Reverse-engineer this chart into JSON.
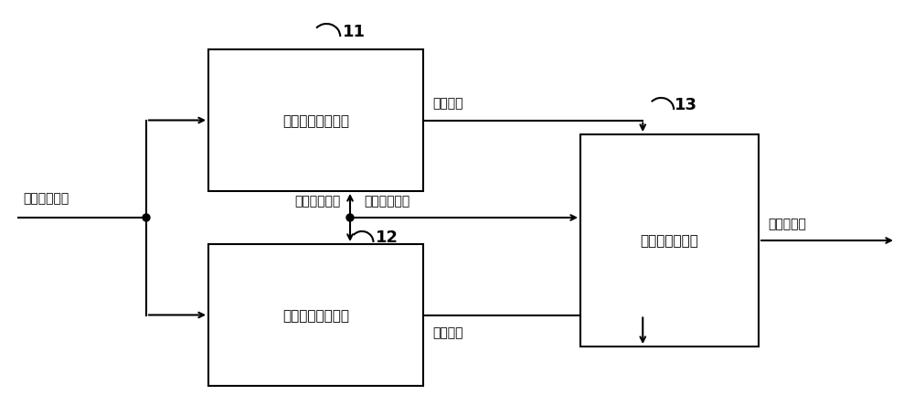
{
  "fig_width": 10.0,
  "fig_height": 4.56,
  "bg_color": "#ffffff",
  "label_11": "11",
  "label_12": "12",
  "label_13": "13",
  "box_xor_label": "异或信号生成电路",
  "box_xnor_label": "同或信号生成电路",
  "box_mux_label": "传输门选择电路",
  "text_first_input": "第一输入信号",
  "text_second_input": "第二输入信号",
  "text_third_input": "第三输入信号",
  "text_xnor_signal": "同或信号",
  "text_xor_signal": "异或信号",
  "text_output": "和输出信号",
  "line_color": "#000000",
  "font_size_box": 11,
  "font_size_signal": 10,
  "font_size_refnum": 13
}
